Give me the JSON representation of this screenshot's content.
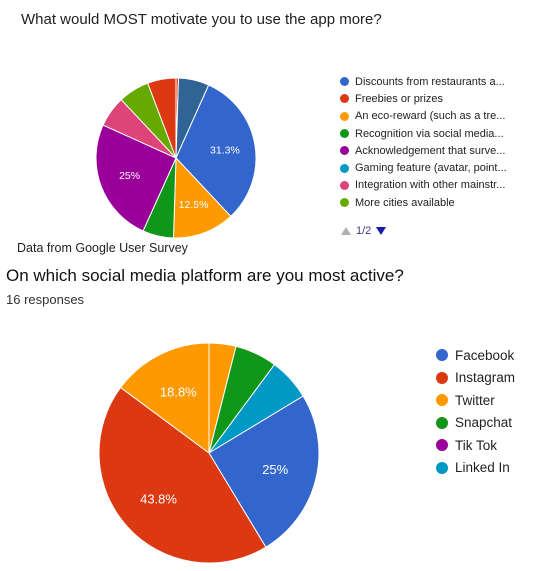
{
  "chart_data": [
    {
      "type": "pie",
      "title": "What would MOST motivate you to use the app more?",
      "caption": "Data from Google User Survey",
      "legend_position": "right",
      "pager": "1/2",
      "slices": [
        {
          "label": "Discounts from restaurants a...",
          "value": 31.3,
          "color": "#3366cc",
          "data_label": "31.3%"
        },
        {
          "label": "Freebies or prizes",
          "value": 6.25,
          "color": "#dc3912",
          "data_label": ""
        },
        {
          "label": "An eco-reward (such as a tre...",
          "value": 12.5,
          "color": "#ff9900",
          "data_label": "12.5%"
        },
        {
          "label": "Recognition via social media...",
          "value": 6.25,
          "color": "#109618",
          "data_label": ""
        },
        {
          "label": "Acknowledgement that surve...",
          "value": 25,
          "color": "#990099",
          "data_label": "25%"
        },
        {
          "label": "Gaming feature (avatar, point...",
          "value": 6.25,
          "color": "#0099c6",
          "data_label": ""
        },
        {
          "label": "Integration with other mainstr...",
          "value": 6.25,
          "color": "#dd4477",
          "data_label": ""
        },
        {
          "label": "More cities available",
          "value": 6.25,
          "color": "#66aa00",
          "data_label": ""
        }
      ],
      "draw_order": [
        0,
        2,
        3,
        4,
        6,
        7,
        1,
        9
      ],
      "extra_slices": [
        {
          "value": 6.2,
          "color": "#316395"
        }
      ]
    },
    {
      "type": "pie",
      "title": "On which social media platform are you most active?",
      "subtitle": "16 responses",
      "legend_position": "right",
      "slices": [
        {
          "label": "Facebook",
          "value": 25,
          "color": "#3366cc",
          "data_label": "25%"
        },
        {
          "label": "Instagram",
          "value": 43.8,
          "color": "#dc3912",
          "data_label": "43.8%"
        },
        {
          "label": "Twitter",
          "value": 18.8,
          "color": "#ff9900",
          "data_label": "18.8%"
        },
        {
          "label": "Snapchat",
          "value": 6.2,
          "color": "#109618",
          "data_label": ""
        },
        {
          "label": "Tik Tok",
          "value": 0,
          "color": "#990099",
          "data_label": ""
        },
        {
          "label": "Linked In",
          "value": 6.2,
          "color": "#0099c6",
          "data_label": ""
        }
      ]
    }
  ]
}
